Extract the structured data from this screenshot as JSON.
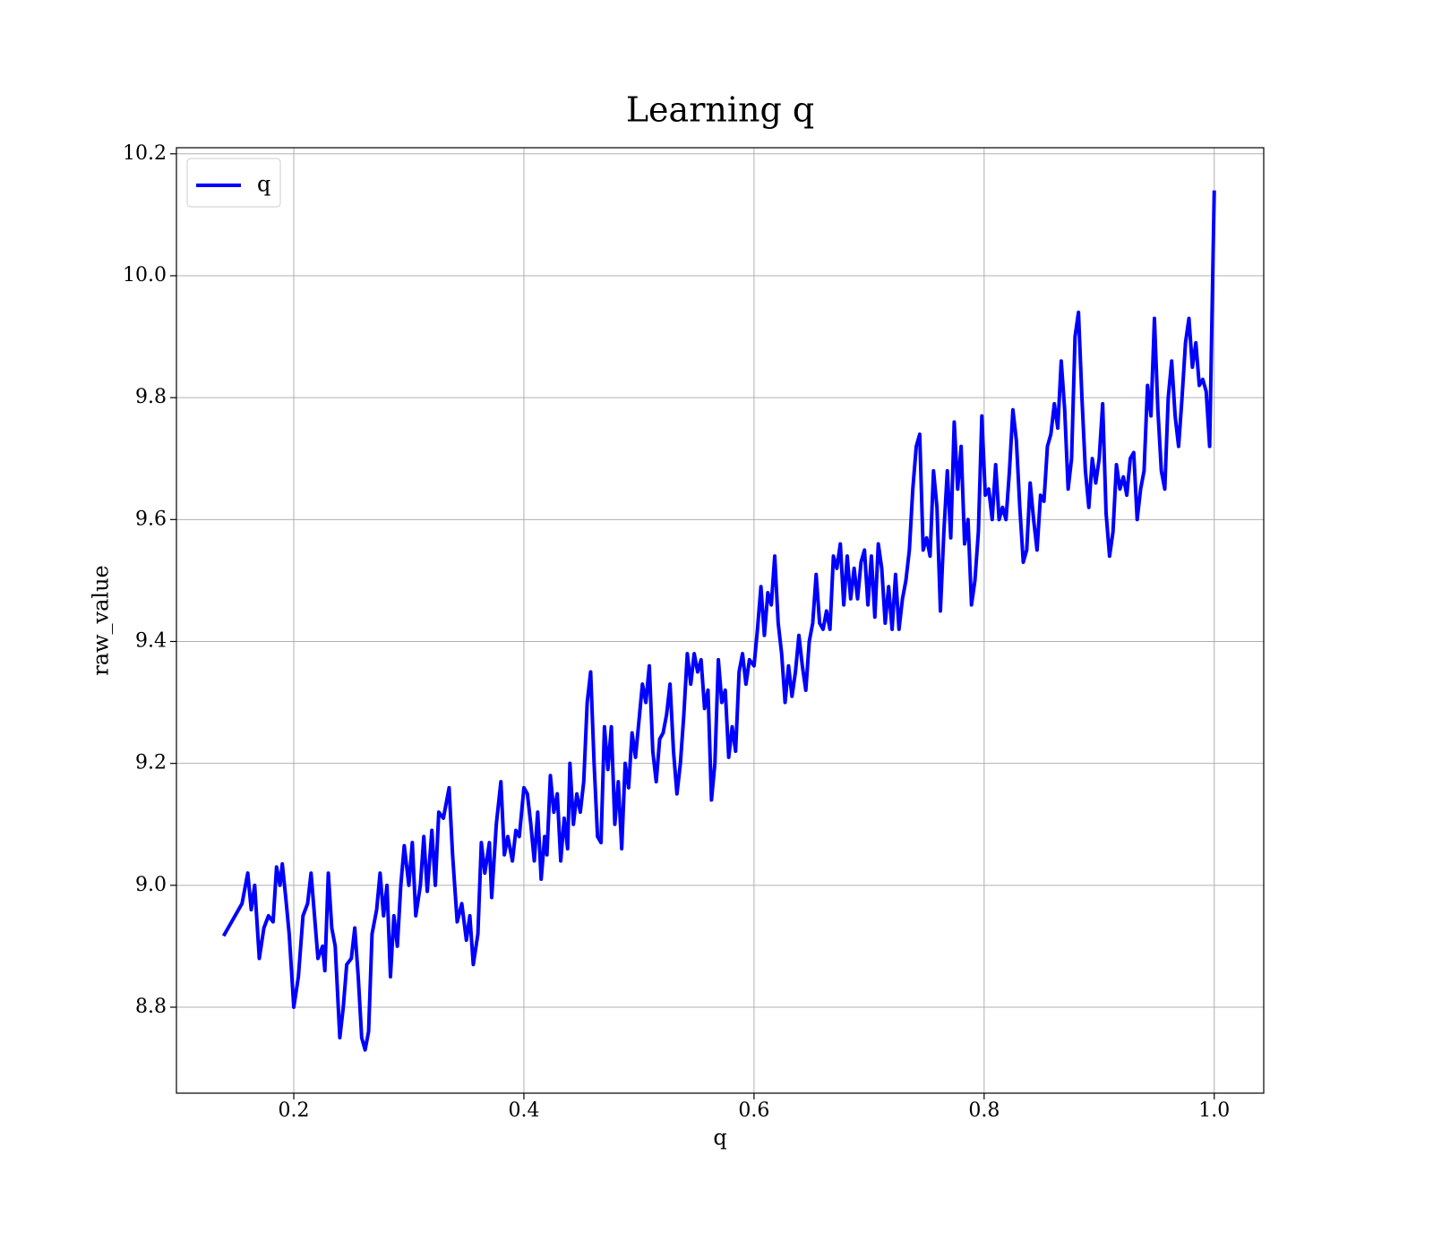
{
  "chart_data": {
    "type": "line",
    "title": "Learning q",
    "xlabel": "q",
    "ylabel": "raw_value",
    "series": [
      {
        "name": "q",
        "color": "#0000ff",
        "x": [
          0.139,
          0.155,
          0.16,
          0.163,
          0.166,
          0.17,
          0.174,
          0.178,
          0.182,
          0.185,
          0.188,
          0.19,
          0.193,
          0.196,
          0.2,
          0.204,
          0.208,
          0.212,
          0.215,
          0.218,
          0.221,
          0.225,
          0.227,
          0.23,
          0.233,
          0.236,
          0.24,
          0.243,
          0.246,
          0.25,
          0.253,
          0.256,
          0.259,
          0.262,
          0.265,
          0.268,
          0.272,
          0.275,
          0.278,
          0.281,
          0.284,
          0.287,
          0.29,
          0.293,
          0.296,
          0.3,
          0.303,
          0.306,
          0.31,
          0.313,
          0.316,
          0.32,
          0.323,
          0.326,
          0.33,
          0.335,
          0.338,
          0.342,
          0.346,
          0.35,
          0.353,
          0.356,
          0.36,
          0.363,
          0.366,
          0.37,
          0.372,
          0.376,
          0.38,
          0.383,
          0.386,
          0.39,
          0.393,
          0.396,
          0.4,
          0.403,
          0.406,
          0.409,
          0.412,
          0.415,
          0.418,
          0.42,
          0.423,
          0.426,
          0.429,
          0.432,
          0.435,
          0.438,
          0.44,
          0.443,
          0.446,
          0.449,
          0.452,
          0.455,
          0.458,
          0.461,
          0.464,
          0.467,
          0.47,
          0.473,
          0.476,
          0.479,
          0.482,
          0.485,
          0.488,
          0.491,
          0.494,
          0.497,
          0.5,
          0.503,
          0.506,
          0.509,
          0.512,
          0.515,
          0.518,
          0.521,
          0.524,
          0.527,
          0.53,
          0.533,
          0.536,
          0.539,
          0.542,
          0.545,
          0.548,
          0.551,
          0.554,
          0.557,
          0.56,
          0.563,
          0.566,
          0.569,
          0.572,
          0.575,
          0.578,
          0.581,
          0.584,
          0.587,
          0.59,
          0.593,
          0.596,
          0.6,
          0.603,
          0.606,
          0.609,
          0.612,
          0.615,
          0.618,
          0.621,
          0.624,
          0.627,
          0.63,
          0.633,
          0.636,
          0.639,
          0.642,
          0.645,
          0.648,
          0.651,
          0.654,
          0.657,
          0.66,
          0.663,
          0.666,
          0.669,
          0.672,
          0.675,
          0.678,
          0.681,
          0.684,
          0.687,
          0.69,
          0.693,
          0.696,
          0.699,
          0.702,
          0.705,
          0.708,
          0.711,
          0.714,
          0.717,
          0.72,
          0.723,
          0.726,
          0.729,
          0.732,
          0.735,
          0.738,
          0.741,
          0.744,
          0.747,
          0.75,
          0.753,
          0.756,
          0.759,
          0.762,
          0.765,
          0.768,
          0.771,
          0.774,
          0.777,
          0.78,
          0.783,
          0.786,
          0.789,
          0.792,
          0.795,
          0.798,
          0.801,
          0.804,
          0.807,
          0.81,
          0.813,
          0.816,
          0.819,
          0.822,
          0.825,
          0.828,
          0.831,
          0.834,
          0.837,
          0.84,
          0.843,
          0.846,
          0.849,
          0.852,
          0.855,
          0.858,
          0.861,
          0.864,
          0.867,
          0.87,
          0.873,
          0.876,
          0.879,
          0.882,
          0.885,
          0.888,
          0.891,
          0.894,
          0.897,
          0.9,
          0.903,
          0.906,
          0.909,
          0.912,
          0.915,
          0.918,
          0.921,
          0.924,
          0.927,
          0.93,
          0.933,
          0.936,
          0.939,
          0.942,
          0.945,
          0.948,
          0.951,
          0.954,
          0.957,
          0.96,
          0.963,
          0.966,
          0.969,
          0.972,
          0.975,
          0.978,
          0.981,
          0.984,
          0.987,
          0.99,
          0.993,
          0.996,
          1.0
        ],
        "values": [
          8.917,
          8.97,
          9.02,
          8.96,
          9.0,
          8.88,
          8.93,
          8.95,
          8.94,
          9.03,
          9.0,
          9.035,
          8.98,
          8.92,
          8.8,
          8.85,
          8.95,
          8.97,
          9.02,
          8.95,
          8.88,
          8.9,
          8.86,
          9.02,
          8.93,
          8.9,
          8.75,
          8.8,
          8.87,
          8.88,
          8.93,
          8.85,
          8.75,
          8.73,
          8.76,
          8.92,
          8.96,
          9.02,
          8.95,
          9.0,
          8.85,
          8.95,
          8.9,
          9.0,
          9.065,
          9.0,
          9.07,
          8.95,
          9.0,
          9.08,
          8.99,
          9.09,
          9.0,
          9.12,
          9.11,
          9.16,
          9.05,
          8.94,
          8.97,
          8.91,
          8.95,
          8.87,
          8.92,
          9.07,
          9.02,
          9.07,
          8.98,
          9.1,
          9.17,
          9.05,
          9.08,
          9.04,
          9.09,
          9.08,
          9.16,
          9.15,
          9.1,
          9.04,
          9.12,
          9.01,
          9.08,
          9.05,
          9.18,
          9.12,
          9.15,
          9.04,
          9.11,
          9.06,
          9.2,
          9.1,
          9.15,
          9.12,
          9.17,
          9.3,
          9.35,
          9.2,
          9.08,
          9.07,
          9.26,
          9.19,
          9.26,
          9.1,
          9.17,
          9.06,
          9.2,
          9.16,
          9.25,
          9.21,
          9.27,
          9.33,
          9.3,
          9.36,
          9.22,
          9.17,
          9.24,
          9.25,
          9.28,
          9.33,
          9.22,
          9.15,
          9.2,
          9.28,
          9.38,
          9.33,
          9.38,
          9.35,
          9.37,
          9.29,
          9.32,
          9.14,
          9.2,
          9.37,
          9.3,
          9.32,
          9.21,
          9.26,
          9.22,
          9.35,
          9.38,
          9.33,
          9.37,
          9.36,
          9.42,
          9.49,
          9.41,
          9.48,
          9.46,
          9.54,
          9.43,
          9.38,
          9.3,
          9.36,
          9.31,
          9.35,
          9.41,
          9.36,
          9.32,
          9.4,
          9.43,
          9.51,
          9.43,
          9.42,
          9.45,
          9.42,
          9.54,
          9.52,
          9.56,
          9.46,
          9.54,
          9.47,
          9.52,
          9.47,
          9.53,
          9.55,
          9.46,
          9.54,
          9.44,
          9.56,
          9.52,
          9.43,
          9.49,
          9.42,
          9.51,
          9.42,
          9.47,
          9.5,
          9.55,
          9.65,
          9.72,
          9.74,
          9.55,
          9.57,
          9.54,
          9.68,
          9.62,
          9.45,
          9.58,
          9.68,
          9.57,
          9.76,
          9.65,
          9.72,
          9.56,
          9.6,
          9.46,
          9.5,
          9.58,
          9.77,
          9.64,
          9.65,
          9.6,
          9.69,
          9.6,
          9.62,
          9.6,
          9.68,
          9.78,
          9.73,
          9.62,
          9.53,
          9.55,
          9.66,
          9.6,
          9.55,
          9.64,
          9.63,
          9.72,
          9.74,
          9.79,
          9.75,
          9.86,
          9.78,
          9.65,
          9.7,
          9.9,
          9.94,
          9.8,
          9.68,
          9.62,
          9.7,
          9.66,
          9.7,
          9.79,
          9.61,
          9.54,
          9.58,
          9.69,
          9.65,
          9.67,
          9.64,
          9.7,
          9.71,
          9.6,
          9.65,
          9.68,
          9.82,
          9.77,
          9.93,
          9.78,
          9.68,
          9.65,
          9.8,
          9.86,
          9.77,
          9.72,
          9.8,
          9.89,
          9.93,
          9.85,
          9.89,
          9.82,
          9.83,
          9.81,
          9.72,
          10.14
        ]
      }
    ],
    "xlim": [
      0.098,
      1.043
    ],
    "ylim": [
      8.659,
      10.21
    ],
    "xticks": [
      0.2,
      0.4,
      0.6,
      0.8,
      {
        "value": 1.0,
        "label": "1.0"
      }
    ],
    "yticks": [
      8.8,
      {
        "value": 9,
        "label": "9.0"
      },
      9.2,
      9.4,
      9.6,
      9.8,
      {
        "value": 10,
        "label": "10.0"
      },
      10.2
    ],
    "grid": true,
    "legend": "upper left"
  }
}
